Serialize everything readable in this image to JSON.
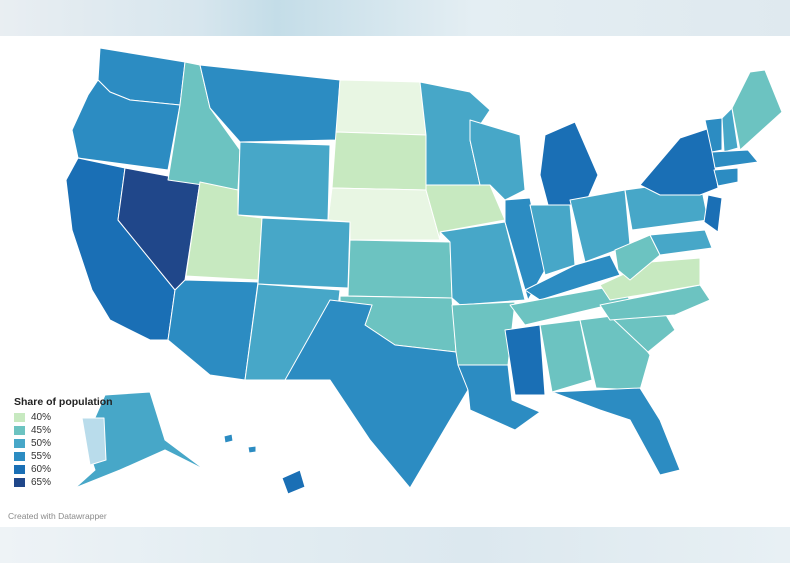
{
  "legend": {
    "title": "Share of population",
    "items": [
      {
        "label": "40%",
        "color": "#c7e9c0"
      },
      {
        "label": "45%",
        "color": "#6cc3c1"
      },
      {
        "label": "50%",
        "color": "#47a7c8"
      },
      {
        "label": "55%",
        "color": "#2c8cc2"
      },
      {
        "label": "60%",
        "color": "#1a6fb5"
      },
      {
        "label": "65%",
        "color": "#20478a"
      }
    ]
  },
  "credit": "Created with Datawrapper",
  "palette": {
    "lightest": "#e8f6e3",
    "l40": "#c7e9c0",
    "l45": "#6cc3c1",
    "l50": "#47a7c8",
    "l55": "#2c8cc2",
    "l60": "#1a6fb5",
    "l65": "#20478a",
    "alaska_light": "#b9dceb"
  }
}
